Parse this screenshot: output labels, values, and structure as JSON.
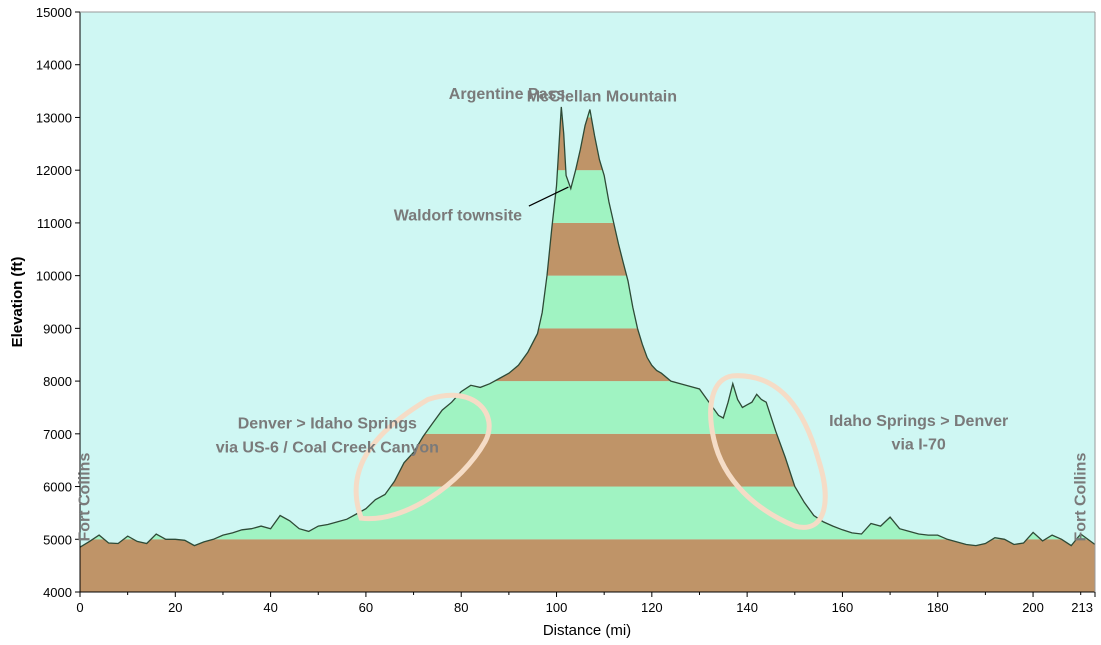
{
  "chart_data": {
    "type": "area",
    "xlabel": "Distance   (mi)",
    "ylabel": "Elevation (ft)",
    "xlim": [
      0,
      213
    ],
    "ylim": [
      4000,
      15000
    ],
    "x_ticks": [
      "0",
      "20",
      "40",
      "60",
      "80",
      "100",
      "120",
      "140",
      "160",
      "180",
      "200",
      "213"
    ],
    "x_tick_values": [
      0,
      20,
      40,
      60,
      80,
      100,
      120,
      140,
      160,
      180,
      200,
      213
    ],
    "y_ticks": [
      "4000",
      "5000",
      "6000",
      "7000",
      "8000",
      "9000",
      "10000",
      "11000",
      "12000",
      "13000",
      "14000",
      "15000"
    ],
    "y_tick_values": [
      4000,
      5000,
      6000,
      7000,
      8000,
      9000,
      10000,
      11000,
      12000,
      13000,
      14000,
      15000
    ],
    "band_colors": [
      "#bf9468",
      "#a0f3c2"
    ],
    "background_color": "#cff7f3",
    "line_color": "#2e4a36",
    "highlight_color": "#f5dcc6",
    "profile": {
      "x": [
        0,
        2,
        4,
        6,
        8,
        10,
        12,
        14,
        16,
        18,
        20,
        22,
        24,
        26,
        28,
        30,
        32,
        34,
        36,
        38,
        40,
        42,
        44,
        46,
        48,
        50,
        52,
        54,
        56,
        58,
        60,
        62,
        64,
        66,
        68,
        70,
        72,
        74,
        76,
        78,
        80,
        82,
        84,
        86,
        88,
        90,
        92,
        94,
        96,
        97,
        98,
        99,
        100,
        101,
        101.5,
        102,
        103,
        104,
        105,
        106,
        107,
        108,
        109,
        110,
        111,
        112,
        113,
        114,
        115,
        116,
        117,
        118,
        119,
        120,
        121,
        122,
        124,
        126,
        128,
        130,
        132,
        134,
        135,
        136,
        137,
        138,
        139,
        140,
        141,
        142,
        143,
        144,
        146,
        148,
        150,
        152,
        154,
        156,
        158,
        160,
        162,
        164,
        166,
        168,
        170,
        172,
        174,
        176,
        178,
        180,
        182,
        184,
        186,
        188,
        190,
        192,
        194,
        196,
        198,
        200,
        202,
        204,
        206,
        208,
        210,
        213
      ],
      "y": [
        4850,
        4960,
        5080,
        4930,
        4920,
        5060,
        4960,
        4920,
        5100,
        5000,
        5000,
        4980,
        4880,
        4950,
        5000,
        5080,
        5120,
        5180,
        5200,
        5250,
        5200,
        5450,
        5350,
        5200,
        5150,
        5250,
        5280,
        5330,
        5380,
        5480,
        5580,
        5750,
        5850,
        6100,
        6450,
        6650,
        6950,
        7200,
        7450,
        7600,
        7800,
        7920,
        7880,
        7950,
        8050,
        8150,
        8300,
        8550,
        8900,
        9300,
        10000,
        10900,
        11700,
        13200,
        12700,
        11900,
        11650,
        12000,
        12400,
        12850,
        13150,
        12650,
        12200,
        11900,
        11400,
        11000,
        10600,
        10250,
        9900,
        9400,
        9000,
        8700,
        8450,
        8300,
        8200,
        8150,
        8000,
        7950,
        7900,
        7850,
        7600,
        7350,
        7300,
        7600,
        7950,
        7650,
        7500,
        7550,
        7600,
        7750,
        7650,
        7600,
        7050,
        6550,
        6000,
        5700,
        5450,
        5330,
        5250,
        5180,
        5120,
        5100,
        5300,
        5250,
        5420,
        5200,
        5150,
        5100,
        5080,
        5080,
        5000,
        4950,
        4900,
        4880,
        4920,
        5030,
        5000,
        4900,
        4930,
        5130,
        4970,
        5080,
        5000,
        4880,
        5100,
        4900
      ]
    },
    "annotations": [
      {
        "text": "Argentine Pass",
        "x": 101,
        "y": 13200
      },
      {
        "text": "McClellan Mountain",
        "x": 107,
        "y": 13150
      },
      {
        "text": "Waldorf townsite",
        "x": 102,
        "y": 11650
      },
      {
        "text": "Denver > Idaho Springs",
        "x": 37,
        "y": 7100
      },
      {
        "text": "via US-6 / Coal Creek Canyon",
        "x": 37,
        "y": 6650
      },
      {
        "text": "Idaho Springs > Denver",
        "x": 176,
        "y": 7150
      },
      {
        "text": "via I-70",
        "x": 176,
        "y": 6700
      },
      {
        "text": "Fort Collins",
        "x": 2,
        "y": 5800
      },
      {
        "text": "Fort Collins",
        "x": 211,
        "y": 5800
      }
    ]
  }
}
